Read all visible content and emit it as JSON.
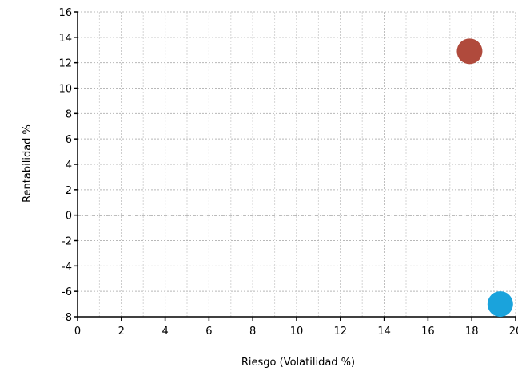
{
  "chart_data": {
    "type": "scatter",
    "title": "",
    "xlabel": "Riesgo (Volatilidad %)",
    "ylabel": "Rentabilidad %",
    "xlim": [
      0,
      20
    ],
    "ylim": [
      -8,
      16
    ],
    "xticks": [
      0,
      2,
      4,
      6,
      8,
      10,
      12,
      14,
      16,
      18,
      20
    ],
    "yticks": [
      -8,
      -6,
      -4,
      -2,
      0,
      2,
      4,
      6,
      8,
      10,
      12,
      14,
      16
    ],
    "grid": true,
    "zero_line": true,
    "points": [
      {
        "x": 17.9,
        "y": 12.9,
        "color": "#b04a3c"
      },
      {
        "x": 19.3,
        "y": -7.0,
        "color": "#1aa3dc"
      }
    ]
  }
}
